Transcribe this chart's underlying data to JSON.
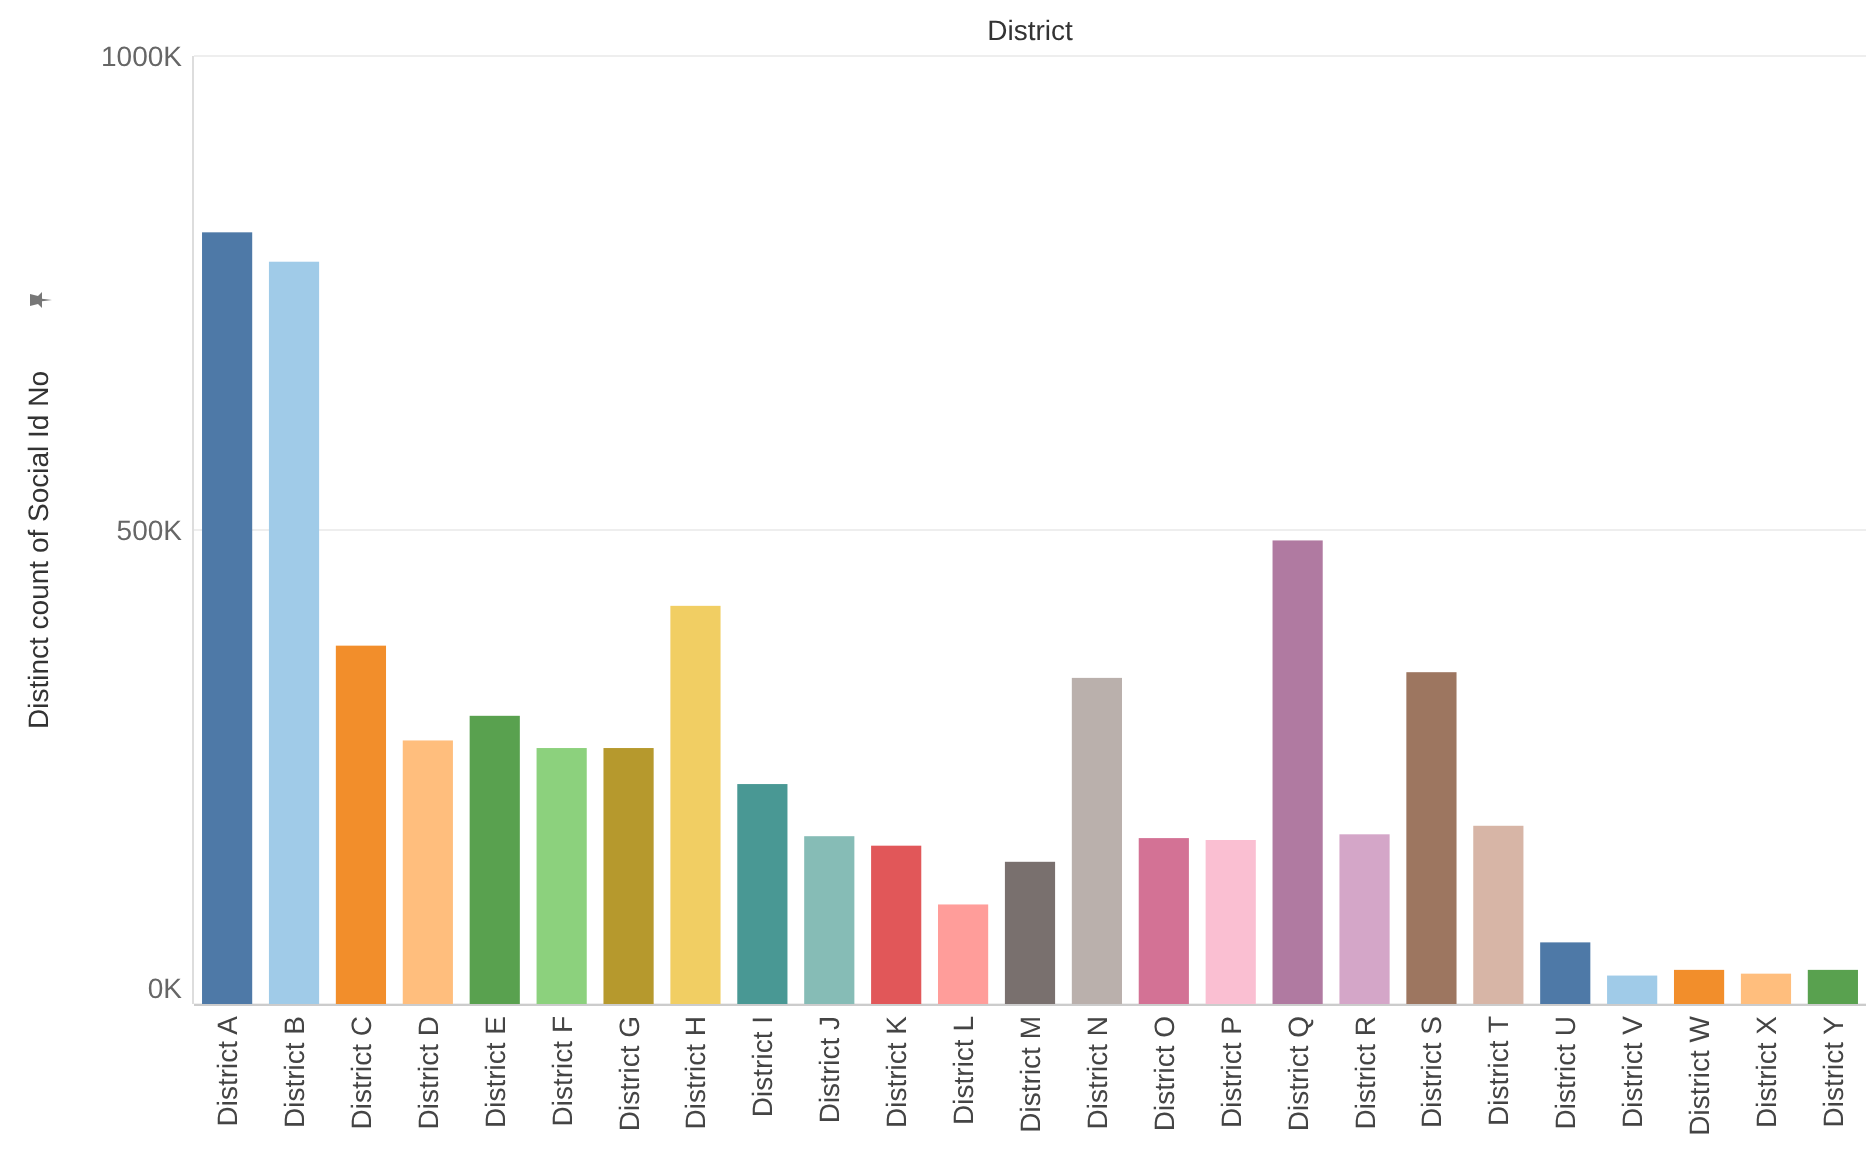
{
  "chart_data": {
    "type": "bar",
    "title": "District",
    "ylabel": "Distinct count of Social Id No",
    "categories": [
      "District A",
      "District B",
      "District C",
      "District D",
      "District E",
      "District F",
      "District G",
      "District H",
      "District I",
      "District J",
      "District K",
      "District L",
      "District M",
      "District N",
      "District O",
      "District P",
      "District Q",
      "District R",
      "District S",
      "District T",
      "District U",
      "District V",
      "District W",
      "District X",
      "District Y"
    ],
    "values": [
      814000,
      783000,
      378000,
      278000,
      304000,
      270000,
      270000,
      420000,
      232000,
      177000,
      167000,
      105000,
      150000,
      344000,
      175000,
      173000,
      489000,
      179000,
      350000,
      188000,
      65000,
      30000,
      36000,
      32000,
      36000
    ],
    "colors": [
      "#4e79a7",
      "#a0cbe8",
      "#f28e2b",
      "#ffbe7d",
      "#59a14f",
      "#8cd17d",
      "#b6992d",
      "#f1ce63",
      "#499894",
      "#86bcb6",
      "#e15759",
      "#ff9d9a",
      "#79706e",
      "#bab0ac",
      "#d37295",
      "#fabfd2",
      "#b07aa1",
      "#d4a6c8",
      "#9d7660",
      "#d7b5a6",
      "#4e79a7",
      "#a0cbe8",
      "#f28e2b",
      "#ffbe7d",
      "#59a14f"
    ],
    "ylim": [
      0,
      1000000
    ],
    "yticks": [
      {
        "value": 0,
        "label": "0K"
      },
      {
        "value": 500000,
        "label": "500K"
      },
      {
        "value": 1000000,
        "label": "1000K"
      }
    ],
    "grid": "y"
  }
}
